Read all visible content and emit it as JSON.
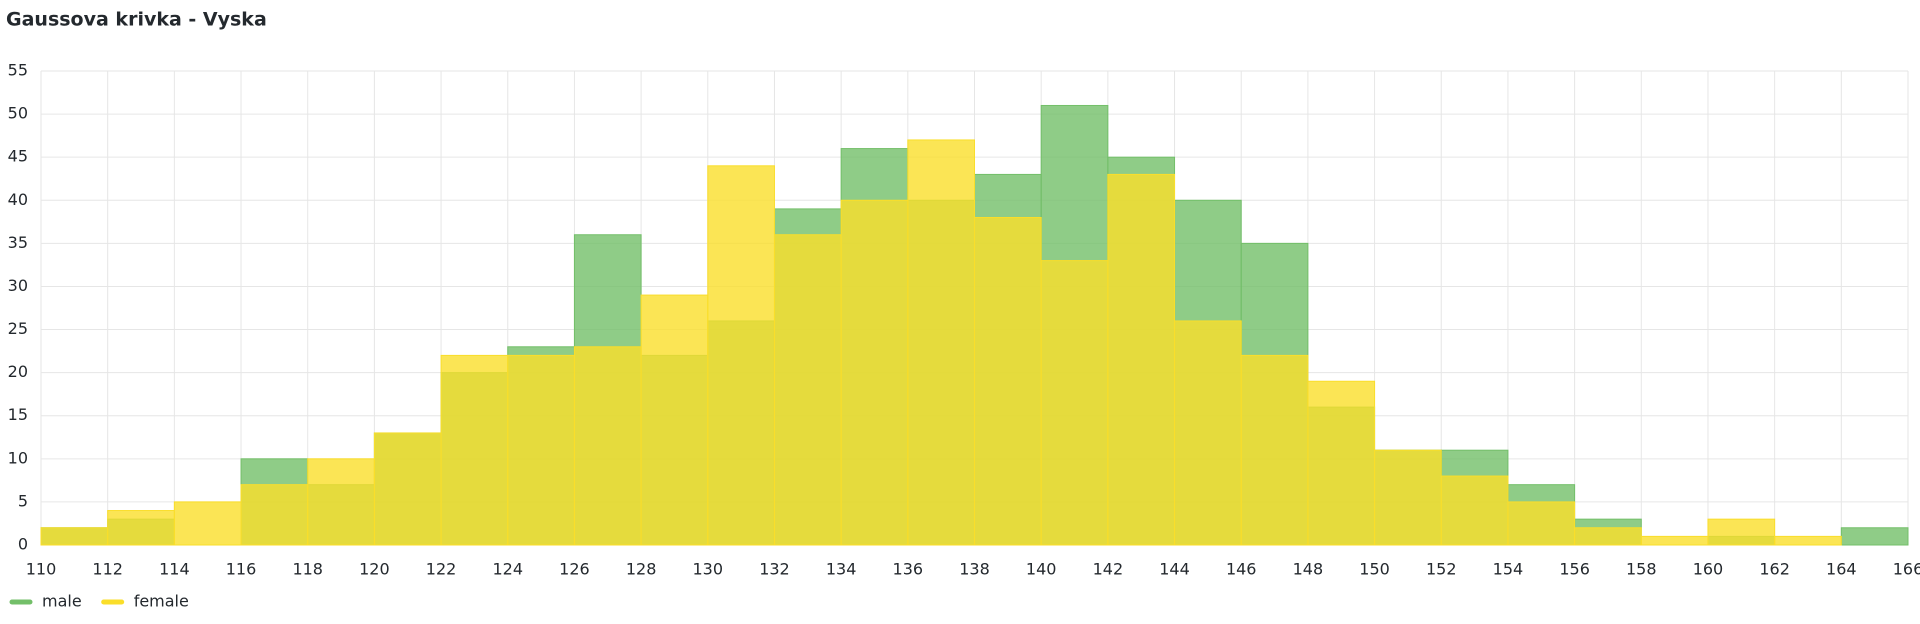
{
  "chart_data": {
    "type": "histogram",
    "title": "Gaussova krivka - Vyska",
    "bins": [
      110,
      112,
      114,
      116,
      118,
      120,
      122,
      124,
      126,
      128,
      130,
      132,
      134,
      136,
      138,
      140,
      142,
      144,
      146,
      148,
      150,
      152,
      154,
      156,
      158,
      160,
      162,
      164,
      166
    ],
    "series": [
      {
        "name": "male",
        "color": "#73bf69",
        "values": [
          2,
          3,
          0,
          10,
          7,
          13,
          20,
          23,
          36,
          22,
          26,
          39,
          46,
          40,
          43,
          51,
          45,
          40,
          35,
          16,
          11,
          11,
          7,
          3,
          0,
          1,
          0,
          2
        ]
      },
      {
        "name": "female",
        "color": "#fade2a",
        "values": [
          2,
          4,
          5,
          7,
          10,
          13,
          22,
          22,
          23,
          29,
          44,
          36,
          40,
          47,
          38,
          33,
          43,
          26,
          22,
          19,
          11,
          8,
          5,
          2,
          1,
          3,
          1,
          0
        ]
      }
    ],
    "xlim": [
      110,
      166
    ],
    "xticks": [
      110,
      112,
      114,
      116,
      118,
      120,
      122,
      124,
      126,
      128,
      130,
      132,
      134,
      136,
      138,
      140,
      142,
      144,
      146,
      148,
      150,
      152,
      154,
      156,
      158,
      160,
      162,
      164,
      166
    ],
    "ylim": [
      0,
      55
    ],
    "yticks": [
      0,
      5,
      10,
      15,
      20,
      25,
      30,
      35,
      40,
      45,
      50,
      55
    ],
    "grid": true,
    "legend": "bottom-left"
  }
}
